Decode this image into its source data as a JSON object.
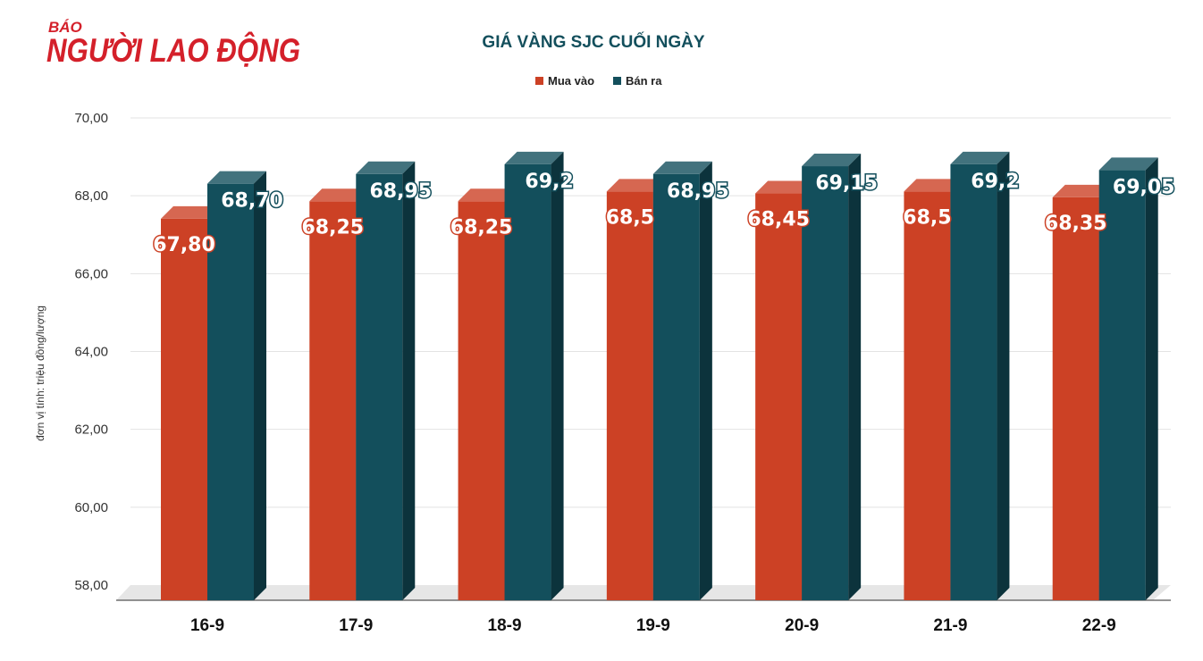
{
  "brand": {
    "top": "BÁO",
    "name": "NGƯỜI LAO ĐỘNG",
    "color": "#d4202a"
  },
  "chart_data": {
    "type": "bar",
    "title": "GIÁ VÀNG SJC CUỐI NGÀY",
    "ylabel": "đơn vị tính: triệu đồng/lượng",
    "xlabel": "",
    "categories": [
      "16-9",
      "17-9",
      "18-9",
      "19-9",
      "20-9",
      "21-9",
      "22-9"
    ],
    "series": [
      {
        "name": "Mua vào",
        "color": "#cc4125",
        "values": [
          67.8,
          68.25,
          68.25,
          68.5,
          68.45,
          68.5,
          68.35
        ],
        "labels": [
          "67,80",
          "68,25",
          "68,25",
          "68,5",
          "68,45",
          "68,5",
          "68,35"
        ]
      },
      {
        "name": "Bán ra",
        "color": "#134f5c",
        "values": [
          68.7,
          68.95,
          69.2,
          68.95,
          69.15,
          69.2,
          69.05
        ],
        "labels": [
          "68,70",
          "68,95",
          "69,2",
          "68,95",
          "69,15",
          "69,2",
          "69,05"
        ]
      }
    ],
    "ylim": [
      58,
      70
    ],
    "yticks": [
      "58,00",
      "60,00",
      "62,00",
      "64,00",
      "66,00",
      "68,00",
      "70,00"
    ],
    "grid": true,
    "legend_position": "top-center",
    "bar_style": "3d"
  }
}
